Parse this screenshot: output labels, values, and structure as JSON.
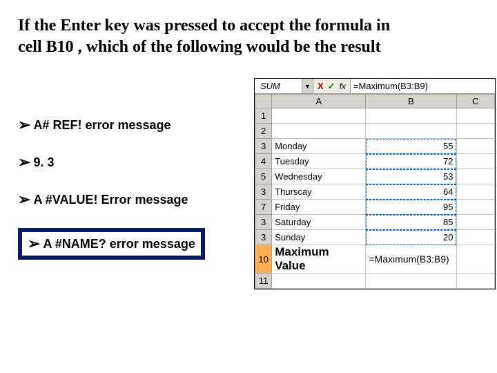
{
  "question": {
    "text": "If the Enter key was pressed to accept the formula in cell B10 , which of the following would be the result"
  },
  "options": [
    {
      "label": "A# REF! error message"
    },
    {
      "label": "9. 3"
    },
    {
      "label": "A #VALUE! Error message"
    },
    {
      "label": "A #NAME? error message"
    }
  ],
  "correct_index": 3,
  "excel": {
    "namebox": "SUM",
    "fx_bar": "=Maximum(B3:B9)",
    "columns": [
      "A",
      "B",
      "C"
    ],
    "rows": [
      {
        "n": "1",
        "a": "",
        "b": "",
        "b_class": ""
      },
      {
        "n": "2",
        "a": "",
        "b": "",
        "b_class": ""
      },
      {
        "n": "3",
        "a": "Monday",
        "b": "55",
        "b_class": "marquee"
      },
      {
        "n": "4",
        "a": "Tuesday",
        "b": "72",
        "b_class": "marquee"
      },
      {
        "n": "5",
        "a": "Wednesday",
        "b": "53",
        "b_class": "marquee"
      },
      {
        "n": "3",
        "a": "Thurscay",
        "b": "64",
        "b_class": "marquee"
      },
      {
        "n": "7",
        "a": "Friday",
        "b": "95",
        "b_class": "marquee"
      },
      {
        "n": "3",
        "a": "Saturday",
        "b": "85",
        "b_class": "marquee"
      },
      {
        "n": "3",
        "a": "Sunday",
        "b": "20",
        "b_class": "marquee"
      }
    ],
    "row10": {
      "n": "10",
      "a": "Maximum Value",
      "b": "=Maximum(B3:B9)"
    },
    "row11": {
      "n": "11"
    }
  },
  "styling": {
    "answer_border_color": "#0a1a6a",
    "header_bg": "#d6d3ce",
    "selected_row_bg": "#ffb050",
    "marquee_color": "#0060c0"
  }
}
